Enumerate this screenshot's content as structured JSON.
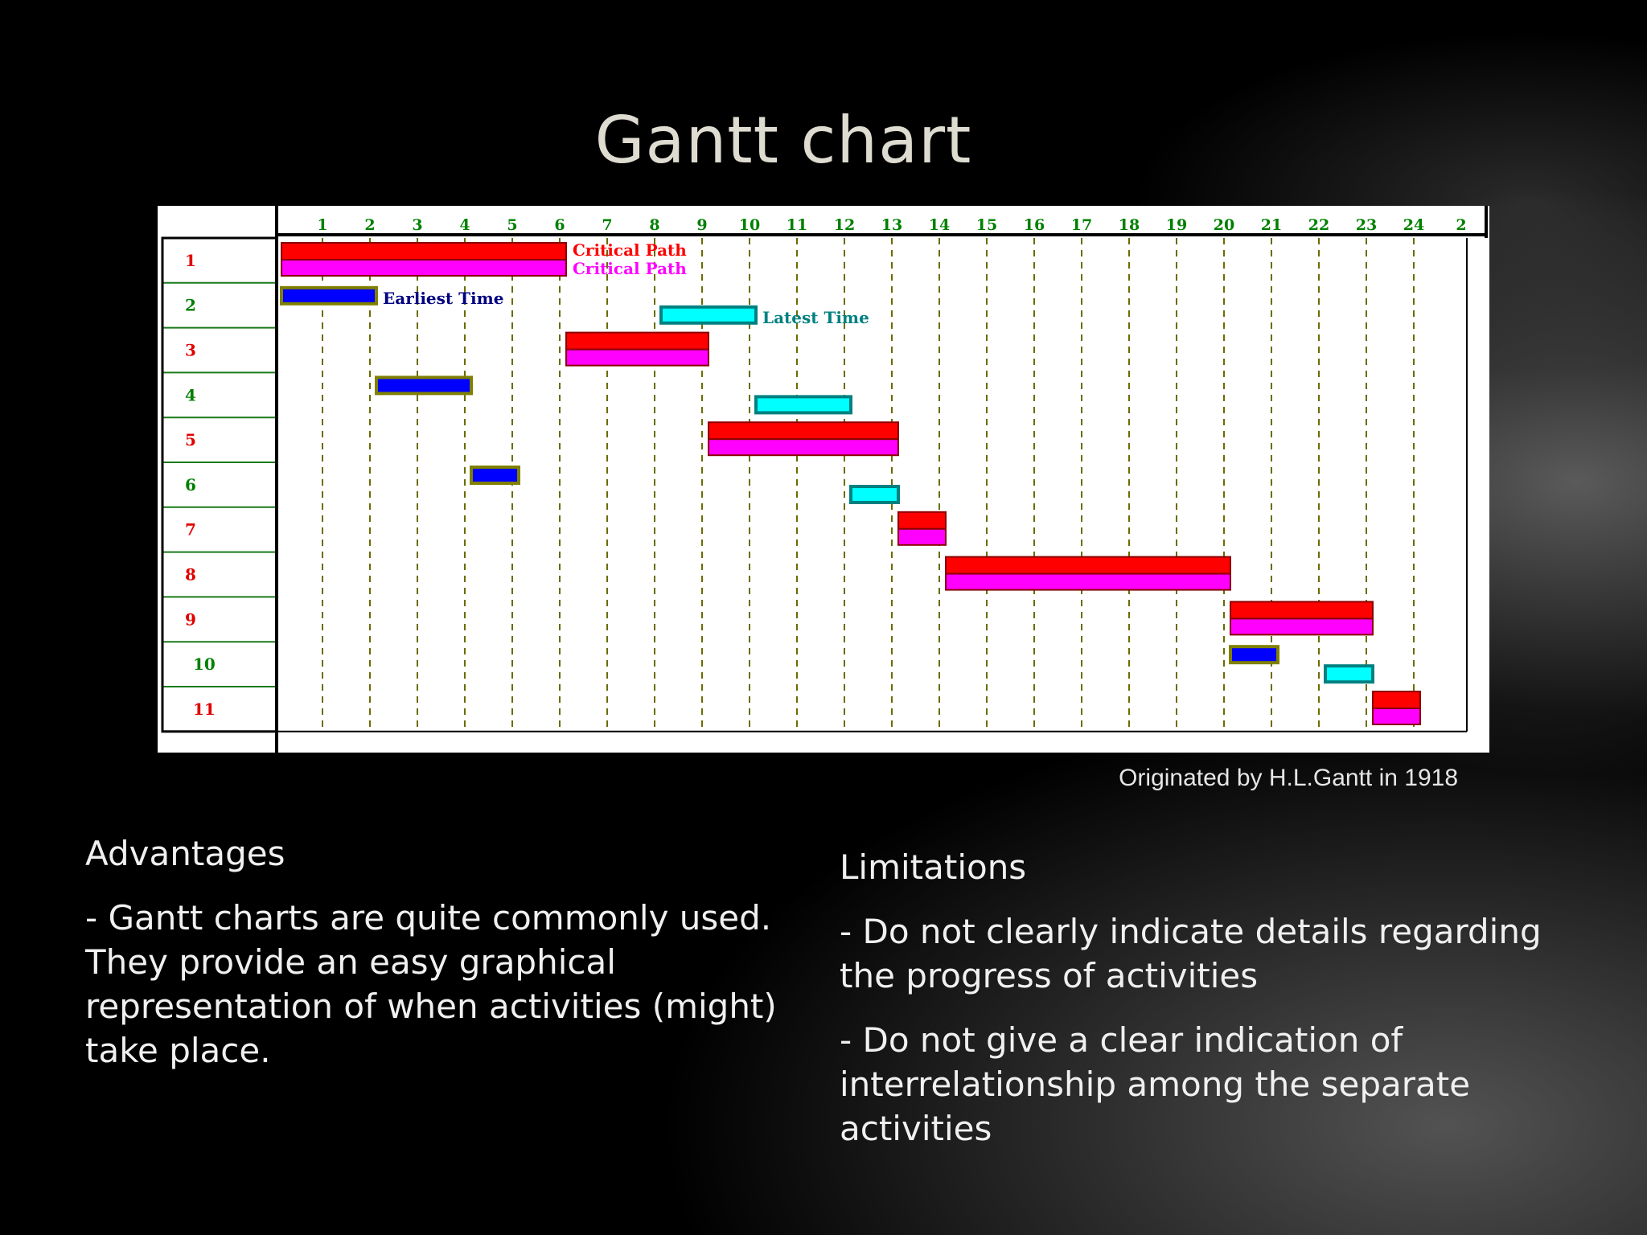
{
  "slide": {
    "title": "Gantt chart",
    "caption": "Originated by H.L.Gantt in 1918"
  },
  "advantages": {
    "heading": "Advantages",
    "text": "- Gantt charts are quite commonly used. They provide an easy graphical representation of when activities (might) take place."
  },
  "limitations": {
    "heading": "Limitations",
    "item1": "-  Do not clearly indicate  details regarding the progress of activities",
    "item2": "-  Do not give a clear indication of interrelationship among the separate activities"
  },
  "chart_data": {
    "type": "gantt",
    "x_ticks": [
      "1",
      "2",
      "3",
      "4",
      "5",
      "6",
      "7",
      "8",
      "9",
      "10",
      "11",
      "12",
      "13",
      "14",
      "15",
      "16",
      "17",
      "18",
      "19",
      "20",
      "21",
      "22",
      "23",
      "24",
      "2"
    ],
    "rows": [
      "1",
      "2",
      "3",
      "4",
      "5",
      "6",
      "7",
      "8",
      "9",
      "10",
      "11"
    ],
    "row_label_colors": [
      "#e00000",
      "#008000",
      "#e00000",
      "#008000",
      "#e00000",
      "#008000",
      "#e00000",
      "#e00000",
      "#e00000",
      "#008000",
      "#e00000"
    ],
    "colors": {
      "critical": "#ff0000",
      "critical_lower": "#ff00ff",
      "earliest": "#0000ff",
      "latest": "#00ffff",
      "grid": "#6b6b00",
      "row_line": "#1a7a1a"
    },
    "bars": [
      {
        "row": 1,
        "kind": "critical",
        "start": 0,
        "end": 6
      },
      {
        "row": 2,
        "kind": "earliest",
        "start": 0,
        "end": 2
      },
      {
        "row": 2,
        "kind": "latest",
        "start": 8,
        "end": 10
      },
      {
        "row": 3,
        "kind": "critical",
        "start": 6,
        "end": 9
      },
      {
        "row": 4,
        "kind": "earliest",
        "start": 2,
        "end": 4
      },
      {
        "row": 4,
        "kind": "latest",
        "start": 10,
        "end": 12
      },
      {
        "row": 5,
        "kind": "critical",
        "start": 9,
        "end": 13
      },
      {
        "row": 6,
        "kind": "earliest",
        "start": 4,
        "end": 5
      },
      {
        "row": 6,
        "kind": "latest",
        "start": 12,
        "end": 13
      },
      {
        "row": 7,
        "kind": "critical",
        "start": 13,
        "end": 14
      },
      {
        "row": 8,
        "kind": "critical",
        "start": 14,
        "end": 20
      },
      {
        "row": 9,
        "kind": "critical",
        "start": 20,
        "end": 23
      },
      {
        "row": 10,
        "kind": "earliest",
        "start": 20,
        "end": 21
      },
      {
        "row": 10,
        "kind": "latest",
        "start": 22,
        "end": 23
      },
      {
        "row": 11,
        "kind": "critical",
        "start": 23,
        "end": 24
      }
    ],
    "annotations": [
      {
        "text": "Critical Path",
        "row": 1,
        "level": "upper",
        "at": 6,
        "color": "#ff0000"
      },
      {
        "text": "Critical Path",
        "row": 1,
        "level": "lower",
        "at": 6,
        "color": "#ff00ff"
      },
      {
        "text": "Earliest Time",
        "row": 2,
        "level": "earliest",
        "at": 2,
        "color": "#000080"
      },
      {
        "text": "Latest Time",
        "row": 2,
        "level": "latest",
        "at": 10,
        "color": "#008080"
      }
    ]
  }
}
